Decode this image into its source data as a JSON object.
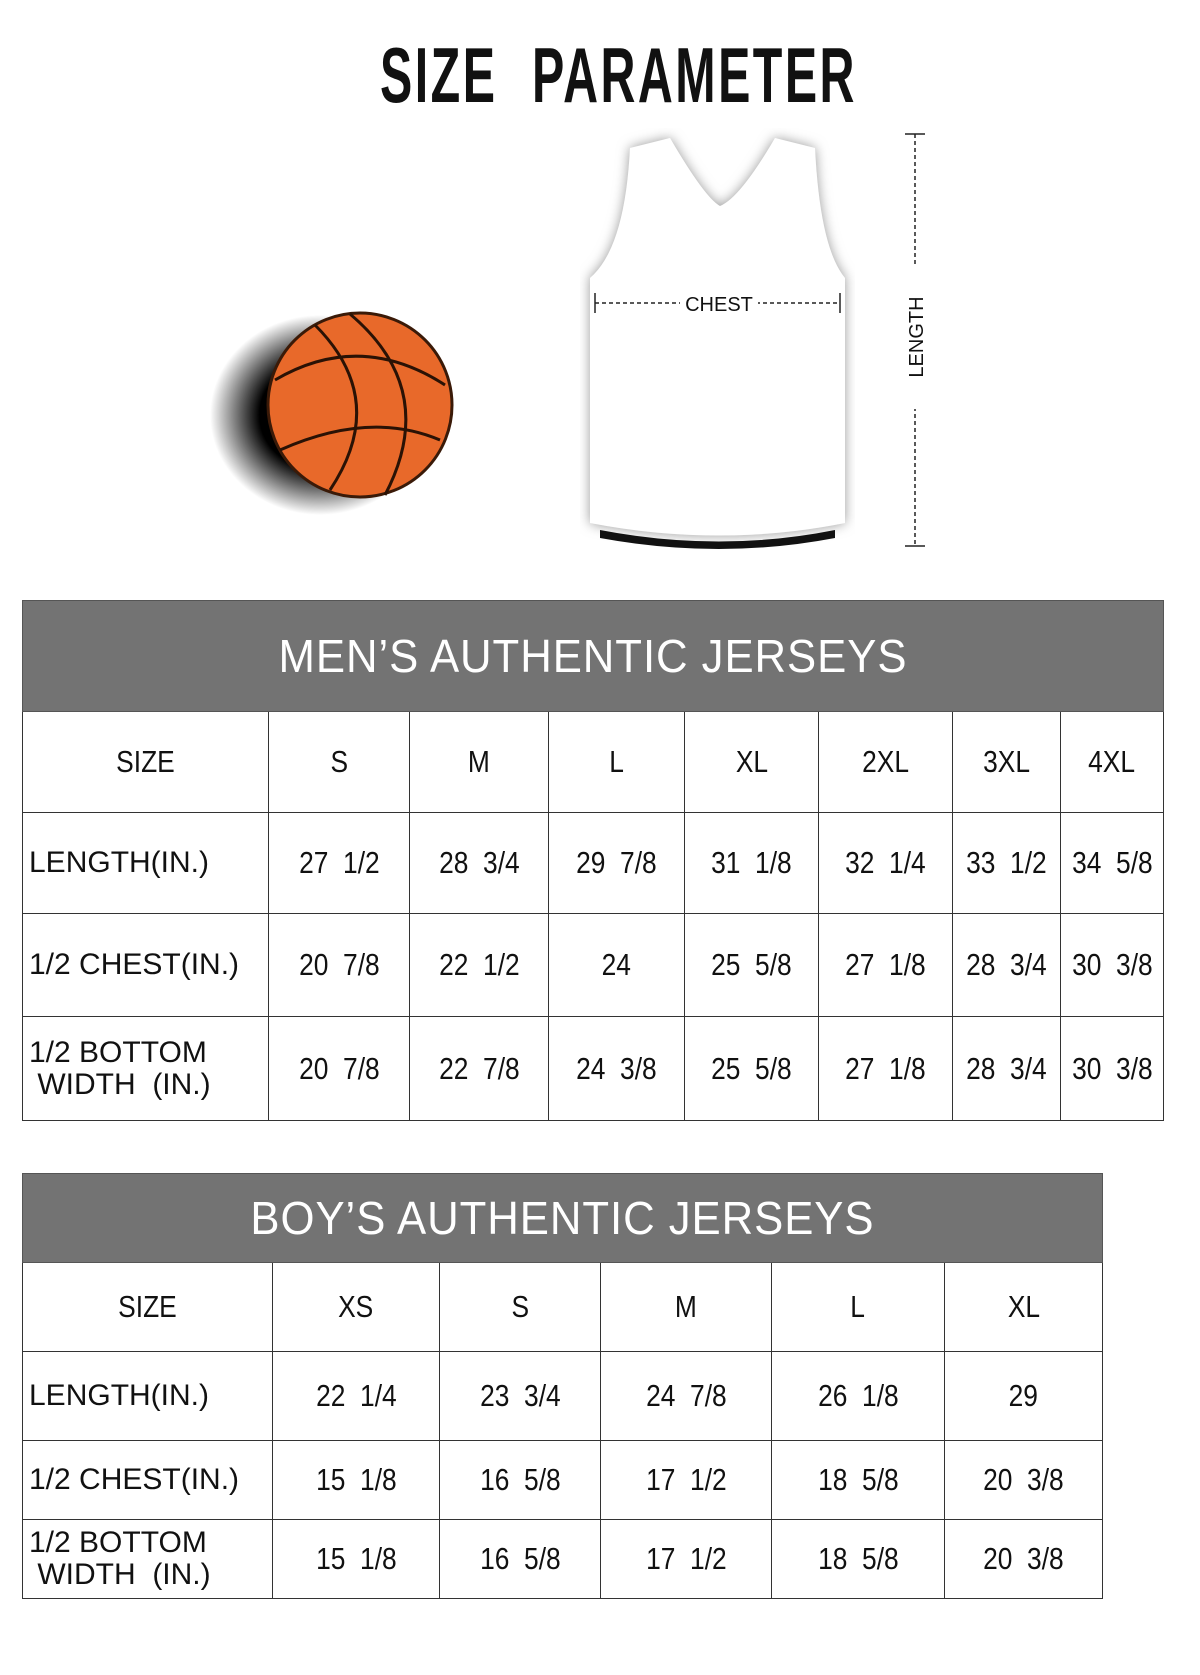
{
  "title": "SIZE PARAMETER",
  "diagram": {
    "chest_label": "CHEST",
    "length_label": "LENGTH"
  },
  "colors": {
    "header_bg": "#737373",
    "ball": "#e8692a"
  },
  "mens": {
    "title": "MEN’S AUTHENTIC JERSEYS",
    "headers": [
      "SIZE",
      "S",
      "M",
      "L",
      "XL",
      "2XL",
      "3XL",
      "4XL"
    ],
    "rows": [
      {
        "label": "LENGTH(IN.)",
        "values": [
          "27  1/2",
          "28  3/4",
          "29  7/8",
          "31  1/8",
          "32  1/4",
          "33  1/2",
          "34  5/8"
        ]
      },
      {
        "label": "1/2 CHEST(IN.)",
        "values": [
          "20  7/8",
          "22  1/2",
          "24",
          "25  5/8",
          "27  1/8",
          "28  3/4",
          "30  3/8"
        ]
      },
      {
        "label": "1/2 BOTTOM WIDTH  (IN.)",
        "values": [
          "20  7/8",
          "22  7/8",
          "24  3/8",
          "25  5/8",
          "27  1/8",
          "28  3/4",
          "30  3/8"
        ]
      }
    ]
  },
  "boys": {
    "title": "BOY’S AUTHENTIC JERSEYS",
    "headers": [
      "SIZE",
      "XS",
      "S",
      "M",
      "L",
      "XL"
    ],
    "rows": [
      {
        "label": "LENGTH(IN.)",
        "values": [
          "22  1/4",
          "23  3/4",
          "24  7/8",
          "26  1/8",
          "29"
        ]
      },
      {
        "label": "1/2 CHEST(IN.)",
        "values": [
          "15  1/8",
          "16  5/8",
          "17  1/2",
          "18  5/8",
          "20  3/8"
        ]
      },
      {
        "label": "1/2 BOTTOM WIDTH  (IN.)",
        "values": [
          "15  1/8",
          "16  5/8",
          "17  1/2",
          "18  5/8",
          "20  3/8"
        ]
      }
    ]
  }
}
